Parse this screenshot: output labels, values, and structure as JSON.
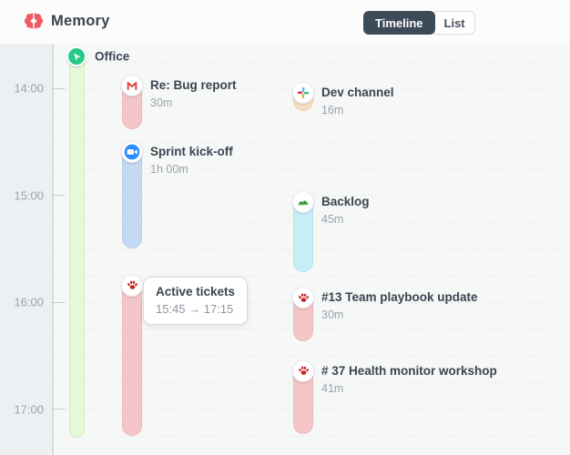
{
  "header": {
    "app_title": "Memory",
    "logo_icon": "brain-icon",
    "view_toggle": [
      {
        "label": "Timeline",
        "active": true
      },
      {
        "label": "List",
        "active": false
      }
    ]
  },
  "timeline": {
    "hours": [
      "14:00",
      "15:00",
      "16:00",
      "17:00"
    ],
    "location_band": {
      "label": "Office",
      "icon": "navigation-icon",
      "fill": "#e5f8d9",
      "border": "#d2efbf",
      "badge_color": "#26c988"
    },
    "events": [
      {
        "id": "bug-report-email",
        "title": "Re: Bug report",
        "duration_label": "30m",
        "duration_min": 30,
        "start": "13:53",
        "column": "left",
        "icon": "gmail-icon",
        "pill_fill": "#f4c6c7",
        "pill_border": "#efb7b9"
      },
      {
        "id": "dev-channel",
        "title": "Dev channel",
        "duration_label": "16m",
        "duration_min": 16,
        "start": "13:57",
        "column": "right",
        "icon": "slack-icon",
        "pill_fill": "#f3dfc1",
        "pill_border": "#ecd3ad"
      },
      {
        "id": "sprint-kick-off",
        "title": "Sprint kick-off",
        "duration_label": "1h 00m",
        "duration_min": 60,
        "start": "14:30",
        "column": "left",
        "icon": "zoom-icon",
        "pill_fill": "#c3d9f1",
        "pill_border": "#b2cdeb"
      },
      {
        "id": "backlog",
        "title": "Backlog",
        "duration_label": "45m",
        "duration_min": 45,
        "start": "14:58",
        "column": "right",
        "icon": "backlog-icon",
        "pill_fill": "#c7edf5",
        "pill_border": "#b4e4ee"
      },
      {
        "id": "active-tickets",
        "duration_min": 90,
        "start": "15:45",
        "column": "left",
        "icon": "paw-icon",
        "pill_fill": "#f4c6c7",
        "pill_border": "#efb7b9",
        "tooltip": {
          "title": "Active tickets",
          "time_range": "15:45 → 17:15"
        }
      },
      {
        "id": "team-playbook-update",
        "title": "#13 Team playbook update",
        "duration_label": "30m",
        "duration_min": 30,
        "start": "15:52",
        "column": "right",
        "icon": "paw-icon",
        "pill_fill": "#f4c6c7",
        "pill_border": "#efb7b9"
      },
      {
        "id": "health-monitor-workshop",
        "title": "# 37 Health monitor workshop",
        "duration_label": "41m",
        "duration_min": 41,
        "start": "16:33",
        "column": "right",
        "icon": "paw-icon",
        "pill_fill": "#f4c6c7",
        "pill_border": "#efb7b9"
      }
    ]
  },
  "colors": {
    "brand_pink": "#ee5b66",
    "accent_green": "#26c988",
    "toggle_active_bg": "#3d4a57",
    "title_text": "#3b4450",
    "muted_text": "#9aa2ab",
    "gutter_bg": "#edf0f3",
    "board_bg": "#f6f7f7"
  }
}
